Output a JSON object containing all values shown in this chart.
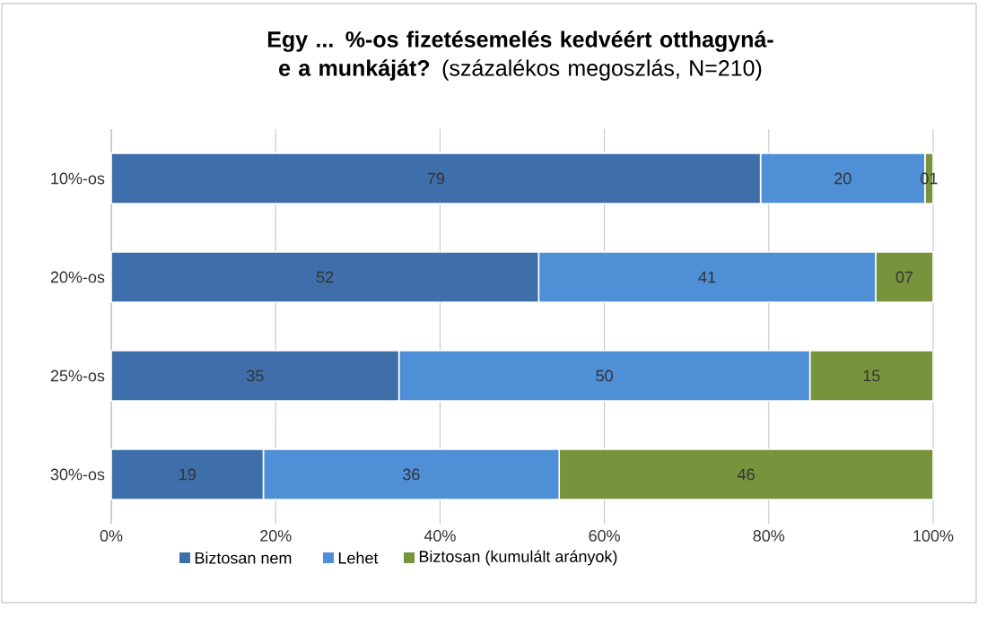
{
  "chart_data": {
    "type": "bar",
    "orientation": "horizontal",
    "stacked": true,
    "title": "**Egy ... %-os fizetésemelés kedvéért otthagyná-e a munkáját?** (százalékos megoszlás, N=210)",
    "categories": [
      "10%-os",
      "20%-os",
      "25%-os",
      "30%-os"
    ],
    "series": [
      {
        "name": "Biztosan nem",
        "color": "#3f6faa",
        "values": [
          79,
          52,
          35,
          18.5
        ],
        "value_labels": [
          "79",
          "52",
          "35",
          "19"
        ]
      },
      {
        "name": "Lehet",
        "color": "#4f8fd6",
        "values": [
          20,
          41,
          50,
          36
        ],
        "value_labels": [
          "20",
          "41",
          "50",
          "36"
        ]
      },
      {
        "name": "Biztosan (kumulált arányok)",
        "color": "#77933c",
        "values": [
          1,
          7,
          15,
          45.5
        ],
        "value_labels": [
          "01",
          "07",
          "15",
          "46"
        ]
      }
    ],
    "xlim": [
      0,
      100
    ],
    "xticks": [
      {
        "value": 0,
        "label": "0%"
      },
      {
        "value": 20,
        "label": "20%"
      },
      {
        "value": 40,
        "label": "40%"
      },
      {
        "value": 60,
        "label": "60%"
      },
      {
        "value": 80,
        "label": "80%"
      },
      {
        "value": 100,
        "label": "100%"
      }
    ],
    "grid": "x",
    "legend": "bottom"
  }
}
